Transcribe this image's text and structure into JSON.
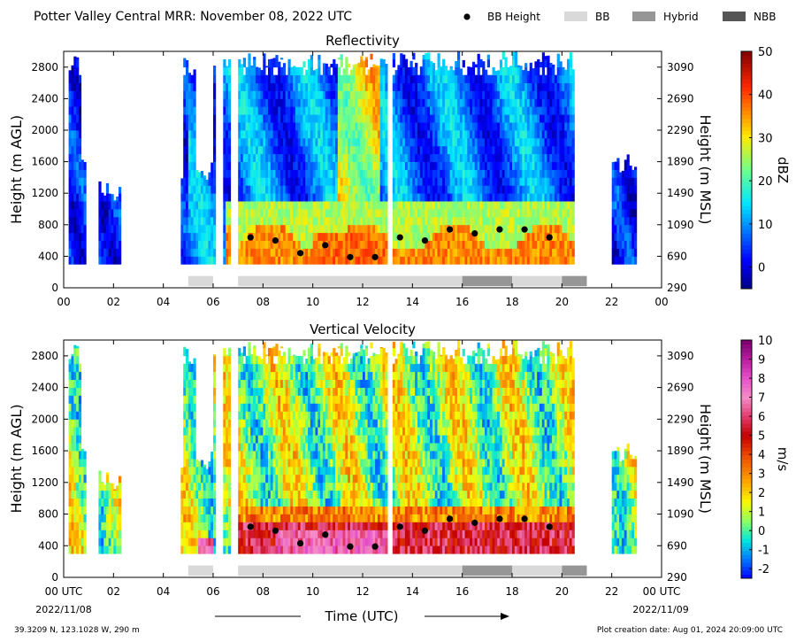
{
  "header": {
    "title": "Potter Valley Central MRR:  November 08, 2022 UTC",
    "legend": [
      {
        "label": "BB Height",
        "kind": "dot",
        "color": "#000000"
      },
      {
        "label": "BB",
        "kind": "box",
        "color": "#d9d9d9"
      },
      {
        "label": "Hybrid",
        "kind": "box",
        "color": "#969696"
      },
      {
        "label": "NBB",
        "kind": "box",
        "color": "#555555"
      }
    ]
  },
  "footer": {
    "location": "39.3209 N, 123.1028 W, 290 m",
    "creation": "Plot creation date: Aug 01, 2024 20:09:00 UTC",
    "xlabel": "Time (UTC)",
    "start_date": "2022/11/08",
    "end_date": "2022/11/09"
  },
  "chart_data": [
    {
      "type": "heatmap",
      "title": "Reflectivity",
      "ylabel": "Height (m AGL)",
      "ylabel_right": "Height (m MSL)",
      "colorbar_label": "dBZ",
      "colorbar_ticks": [
        0,
        10,
        20,
        30,
        40,
        50
      ],
      "colorbar_range": [
        -5,
        50
      ],
      "xlim": [
        0,
        24
      ],
      "ylim": [
        0,
        3000
      ],
      "x_ticks": [
        "00",
        "02",
        "04",
        "06",
        "08",
        "10",
        "12",
        "14",
        "16",
        "18",
        "20",
        "22",
        "00"
      ],
      "y_ticks": [
        0,
        400,
        800,
        1200,
        1600,
        2000,
        2400,
        2800
      ],
      "y_ticks_right": [
        290,
        690,
        1090,
        1490,
        1890,
        2290,
        2690,
        3090
      ],
      "bb_height": {
        "x": [
          7.5,
          8.5,
          9.5,
          10.5,
          11.5,
          12.5,
          13.5,
          14.5,
          15.5,
          16.5,
          17.5,
          18.5,
          19.5
        ],
        "y": [
          640,
          600,
          440,
          540,
          390,
          390,
          640,
          600,
          740,
          690,
          740,
          740,
          640
        ]
      },
      "bb_type_segments": [
        {
          "start": 5,
          "end": 6,
          "type": "BB"
        },
        {
          "start": 7,
          "end": 16,
          "type": "BB"
        },
        {
          "start": 16,
          "end": 18,
          "type": "Hybrid"
        },
        {
          "start": 18,
          "end": 20,
          "type": "BB"
        },
        {
          "start": 20,
          "end": 21,
          "type": "Hybrid"
        }
      ]
    },
    {
      "type": "heatmap",
      "title": "Vertical Velocity",
      "ylabel": "Height (m AGL)",
      "ylabel_right": "Height (m MSL)",
      "colorbar_label": "m/s",
      "colorbar_ticks": [
        -2,
        -1,
        0,
        1,
        2,
        3,
        4,
        5,
        6,
        7,
        8,
        9,
        10
      ],
      "colorbar_range": [
        -2.5,
        10
      ],
      "xlim": [
        0,
        24
      ],
      "ylim": [
        0,
        3000
      ],
      "x_ticks": [
        "00 UTC",
        "02",
        "04",
        "06",
        "08",
        "10",
        "12",
        "14",
        "16",
        "18",
        "20",
        "22",
        "00 UTC"
      ],
      "y_ticks": [
        0,
        400,
        800,
        1200,
        1600,
        2000,
        2400,
        2800
      ],
      "y_ticks_right": [
        290,
        690,
        1090,
        1490,
        1890,
        2290,
        2690,
        3090
      ],
      "bb_height": {
        "x": [
          7.5,
          8.5,
          9.5,
          10.5,
          11.5,
          12.5,
          13.5,
          14.5,
          15.5,
          16.5,
          17.5,
          18.5,
          19.5
        ],
        "y": [
          640,
          590,
          430,
          540,
          390,
          390,
          640,
          590,
          740,
          690,
          740,
          740,
          640
        ]
      },
      "bb_type_segments": [
        {
          "start": 5,
          "end": 6,
          "type": "BB"
        },
        {
          "start": 7,
          "end": 16,
          "type": "BB"
        },
        {
          "start": 16,
          "end": 18,
          "type": "Hybrid"
        },
        {
          "start": 18,
          "end": 20,
          "type": "BB"
        },
        {
          "start": 20,
          "end": 21,
          "type": "Hybrid"
        }
      ]
    }
  ]
}
